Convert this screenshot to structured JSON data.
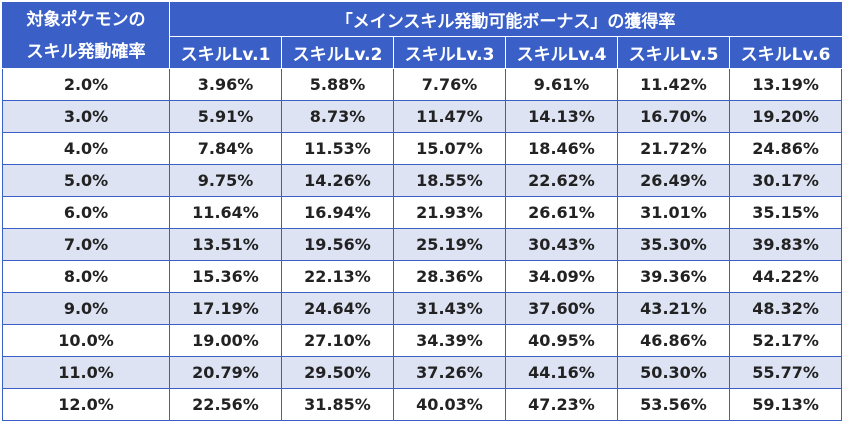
{
  "table": {
    "corner_header": [
      "対象ポケモンの",
      "スキル発動確率"
    ],
    "group_header": "「メインスキル発動可能ボーナス」の獲得率",
    "level_headers": [
      "スキルLv.1",
      "スキルLv.2",
      "スキルLv.3",
      "スキルLv.4",
      "スキルLv.5",
      "スキルLv.6"
    ],
    "rows": [
      {
        "rate": "2.0%",
        "values": [
          "3.96%",
          "5.88%",
          "7.76%",
          "9.61%",
          "11.42%",
          "13.19%"
        ]
      },
      {
        "rate": "3.0%",
        "values": [
          "5.91%",
          "8.73%",
          "11.47%",
          "14.13%",
          "16.70%",
          "19.20%"
        ]
      },
      {
        "rate": "4.0%",
        "values": [
          "7.84%",
          "11.53%",
          "15.07%",
          "18.46%",
          "21.72%",
          "24.86%"
        ]
      },
      {
        "rate": "5.0%",
        "values": [
          "9.75%",
          "14.26%",
          "18.55%",
          "22.62%",
          "26.49%",
          "30.17%"
        ]
      },
      {
        "rate": "6.0%",
        "values": [
          "11.64%",
          "16.94%",
          "21.93%",
          "26.61%",
          "31.01%",
          "35.15%"
        ]
      },
      {
        "rate": "7.0%",
        "values": [
          "13.51%",
          "19.56%",
          "25.19%",
          "30.43%",
          "35.30%",
          "39.83%"
        ]
      },
      {
        "rate": "8.0%",
        "values": [
          "15.36%",
          "22.13%",
          "28.36%",
          "34.09%",
          "39.36%",
          "44.22%"
        ]
      },
      {
        "rate": "9.0%",
        "values": [
          "17.19%",
          "24.64%",
          "31.43%",
          "37.60%",
          "43.21%",
          "48.32%"
        ]
      },
      {
        "rate": "10.0%",
        "values": [
          "19.00%",
          "27.10%",
          "34.39%",
          "40.95%",
          "46.86%",
          "52.17%"
        ]
      },
      {
        "rate": "11.0%",
        "values": [
          "20.79%",
          "29.50%",
          "37.26%",
          "44.16%",
          "50.30%",
          "55.77%"
        ]
      },
      {
        "rate": "12.0%",
        "values": [
          "22.56%",
          "31.85%",
          "40.03%",
          "47.23%",
          "53.56%",
          "59.13%"
        ]
      }
    ]
  },
  "colors": {
    "header_bg": "#3a60c8",
    "header_text": "#ffffff",
    "row_alt_bg": "#dde3f3",
    "row_bg": "#ffffff",
    "border": "#3a60c8"
  }
}
